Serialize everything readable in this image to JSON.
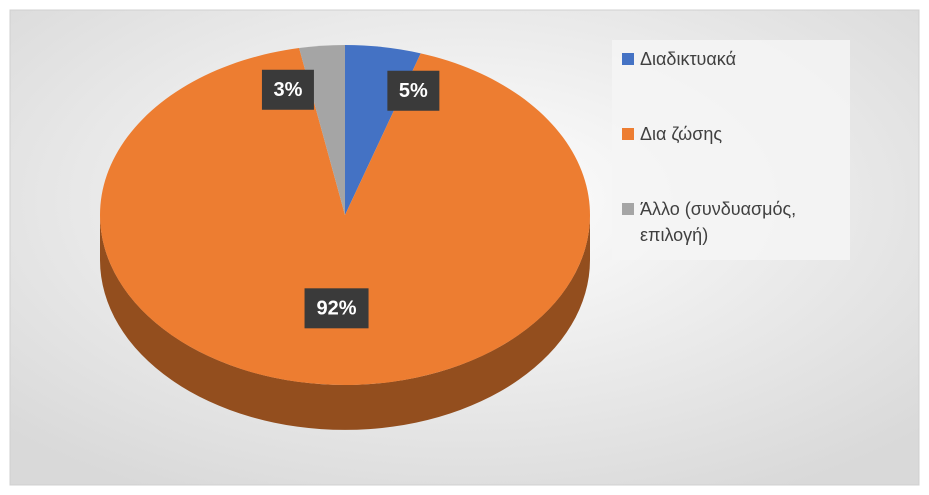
{
  "chart_data": {
    "type": "pie",
    "categories": [
      "Διαδικτυακά",
      "Δια ζώσης",
      "Άλλο (συνδυασμός, επιλογή)"
    ],
    "values": [
      5,
      92,
      3
    ],
    "value_labels": [
      "5%",
      "92%",
      "3%"
    ],
    "colors": [
      "#4472c4",
      "#ed7d31",
      "#a5a5a5"
    ],
    "legend": "right"
  }
}
